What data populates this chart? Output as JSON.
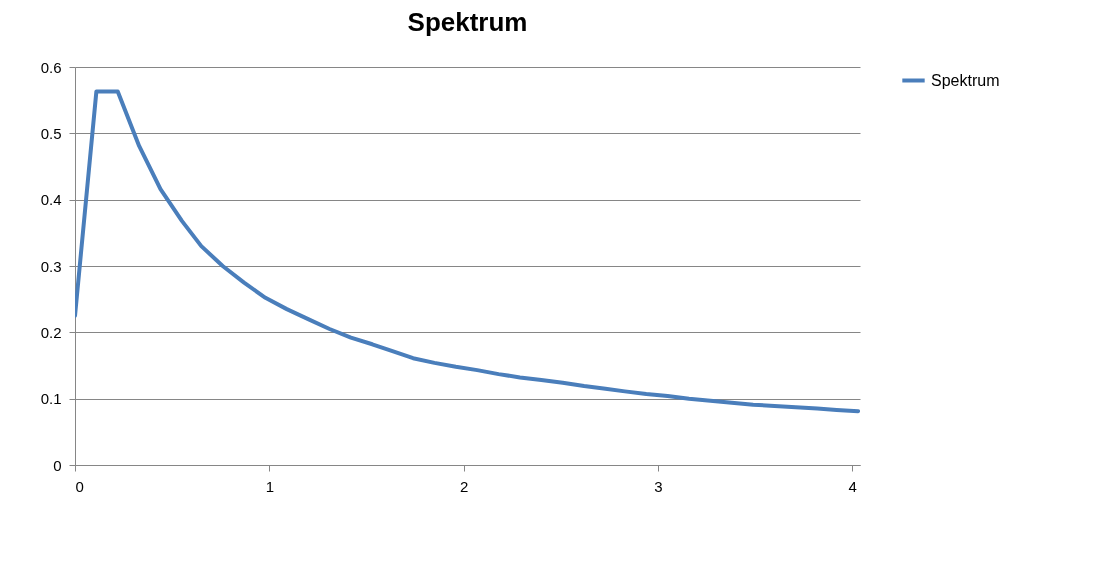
{
  "chart_data": {
    "type": "line",
    "title": "Spektrum",
    "x": [
      0,
      0.11,
      0.22,
      0.33,
      0.44,
      0.55,
      0.65,
      0.76,
      0.87,
      0.98,
      1.09,
      1.2,
      1.31,
      1.42,
      1.53,
      1.63,
      1.74,
      1.85,
      1.96,
      2.07,
      2.18,
      2.29,
      2.4,
      2.51,
      2.62,
      2.73,
      2.83,
      2.94,
      3.05,
      3.16,
      3.27,
      3.38,
      3.49,
      3.6,
      3.71,
      3.82,
      3.92,
      4.03
    ],
    "series": [
      {
        "name": "Spektrum",
        "color": "#4a7ebb",
        "values": [
          0.225,
          0.563,
          0.563,
          0.481,
          0.416,
          0.368,
          0.33,
          0.3,
          0.275,
          0.252,
          0.235,
          0.22,
          0.205,
          0.192,
          0.182,
          0.172,
          0.161,
          0.154,
          0.148,
          0.143,
          0.137,
          0.132,
          0.128,
          0.124,
          0.119,
          0.115,
          0.111,
          0.107,
          0.104,
          0.1,
          0.097,
          0.094,
          0.091,
          0.089,
          0.087,
          0.085,
          0.083,
          0.081
        ]
      }
    ],
    "xlim": [
      0,
      4.04
    ],
    "xticks": [
      0,
      1,
      2,
      3,
      4
    ],
    "ylim": [
      0,
      0.6
    ],
    "yticks": [
      0,
      0.1,
      0.2,
      0.3,
      0.4,
      0.5,
      0.6
    ],
    "grid": "y",
    "legend": "right",
    "marker": "none",
    "line_style": "solid"
  }
}
